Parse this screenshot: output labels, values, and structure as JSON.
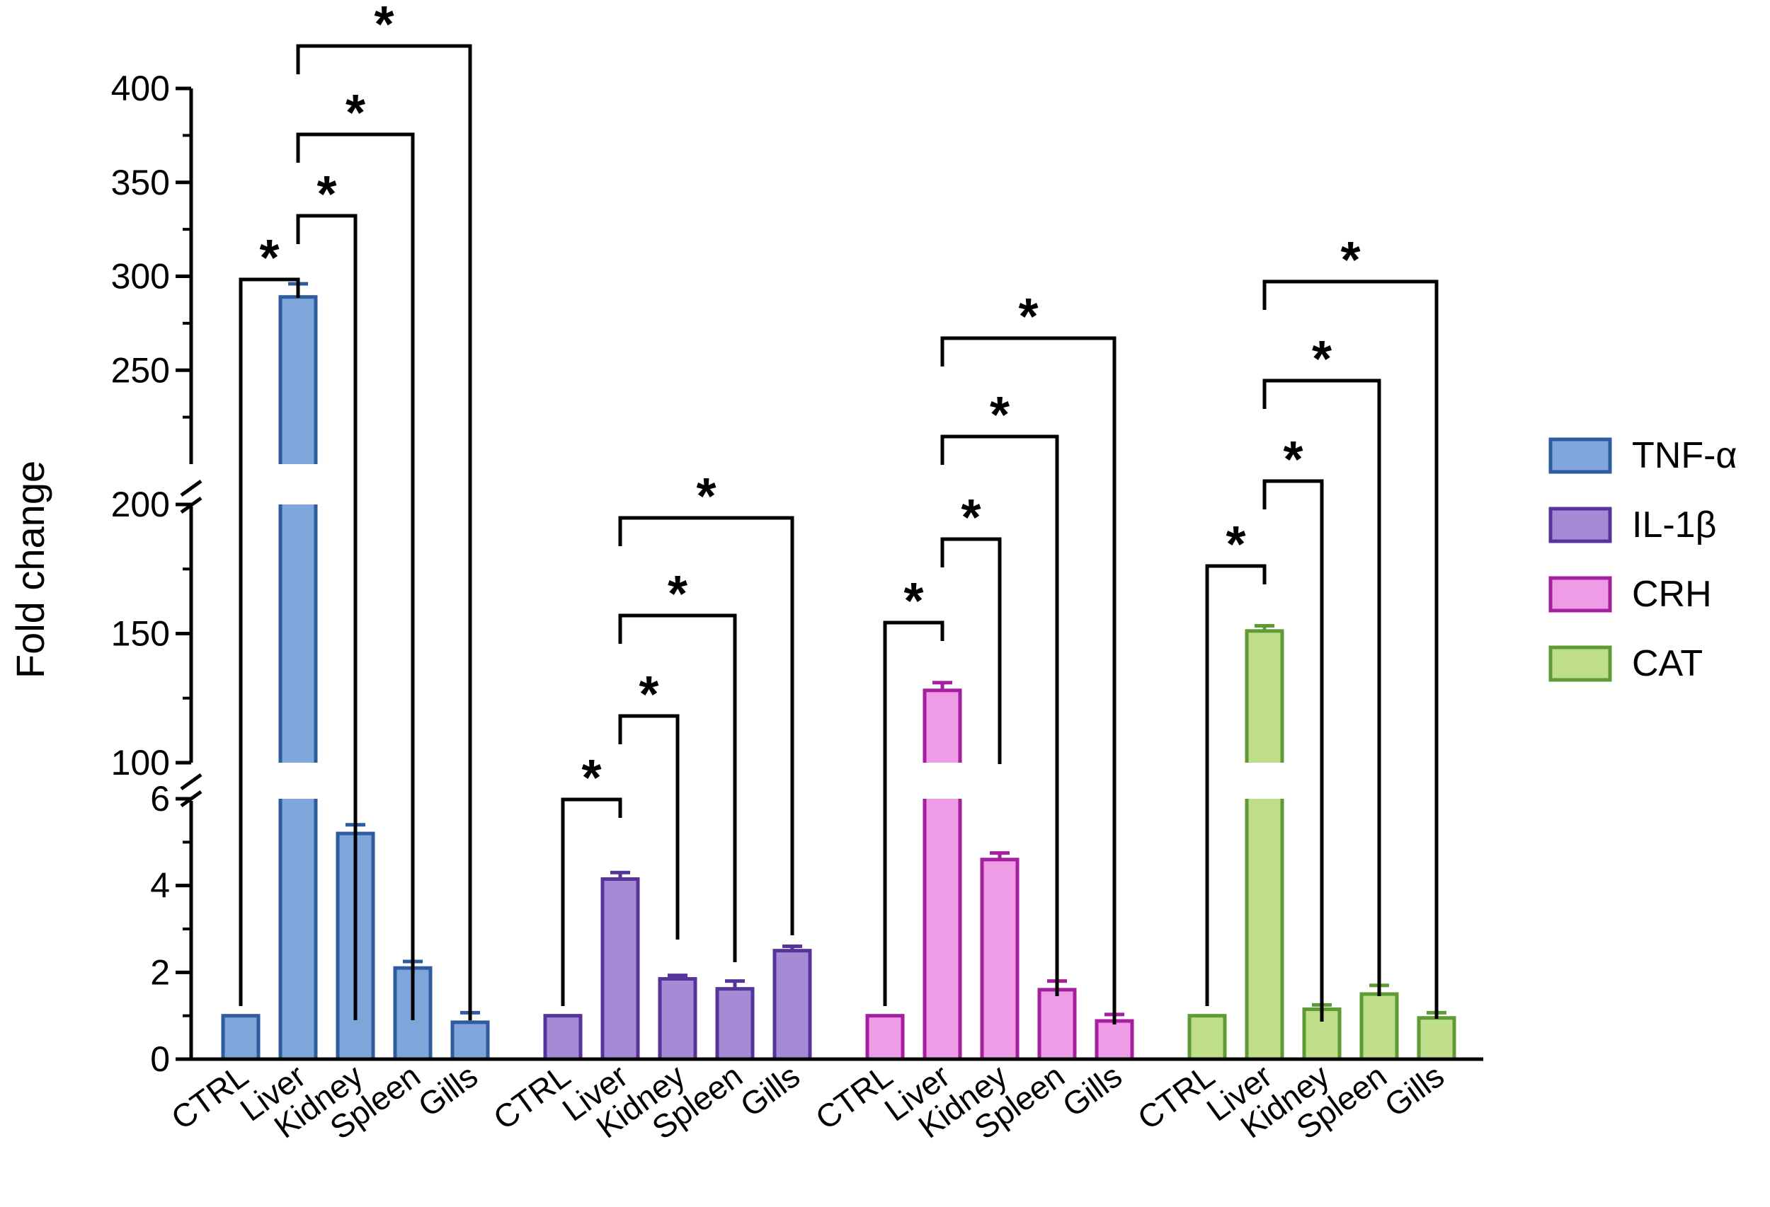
{
  "chart_data": {
    "type": "bar",
    "ylabel": "Fold change",
    "xlabel": "",
    "y_axis_segments": [
      {
        "range": [
          0,
          6
        ],
        "ticks": [
          "0",
          "2",
          "4",
          "6"
        ]
      },
      {
        "range": [
          100,
          200
        ],
        "ticks": [
          "100",
          "150",
          "200"
        ]
      },
      {
        "range": [
          200,
          400
        ],
        "ticks": [
          "250",
          "300",
          "350",
          "400"
        ]
      }
    ],
    "categories": [
      "CTRL",
      "Liver",
      "Kidney",
      "Spleen",
      "Gills"
    ],
    "significance_marker": "*",
    "series": [
      {
        "name": "TNF-α",
        "color": "#7EA6DB",
        "edge": "#2E5C9E",
        "values": [
          1,
          289,
          5.2,
          2.1,
          0.85
        ],
        "errors": [
          0,
          7,
          0.2,
          0.15,
          0.22
        ]
      },
      {
        "name": "IL-1β",
        "color": "#A58BD6",
        "edge": "#56349A",
        "values": [
          1,
          4.15,
          1.85,
          1.62,
          2.5
        ],
        "errors": [
          0,
          0.15,
          0.08,
          0.18,
          0.1
        ]
      },
      {
        "name": "CRH",
        "color": "#EE9CE6",
        "edge": "#A61FA0",
        "values": [
          1,
          128,
          4.6,
          1.6,
          0.88
        ],
        "errors": [
          0,
          3,
          0.15,
          0.2,
          0.15
        ]
      },
      {
        "name": "CAT",
        "color": "#BEDE8A",
        "edge": "#5E9B32",
        "values": [
          1,
          151,
          1.15,
          1.5,
          0.95
        ],
        "errors": [
          0,
          2,
          0.1,
          0.2,
          0.12
        ]
      }
    ],
    "legend": {
      "position": "right",
      "entries": [
        "TNF-α",
        "IL-1β",
        "CRH",
        "CAT"
      ]
    },
    "comparisons": [
      {
        "series": "TNF-α",
        "from": "CTRL",
        "to": "Liver",
        "label": "*"
      },
      {
        "series": "TNF-α",
        "from": "Liver",
        "to": "Kidney",
        "label": "*"
      },
      {
        "series": "TNF-α",
        "from": "Liver",
        "to": "Spleen",
        "label": "*"
      },
      {
        "series": "TNF-α",
        "from": "Liver",
        "to": "Gills",
        "label": "*"
      },
      {
        "series": "IL-1β",
        "from": "CTRL",
        "to": "Liver",
        "label": "*"
      },
      {
        "series": "IL-1β",
        "from": "Liver",
        "to": "Kidney",
        "label": "*"
      },
      {
        "series": "IL-1β",
        "from": "Liver",
        "to": "Spleen",
        "label": "*"
      },
      {
        "series": "IL-1β",
        "from": "Liver",
        "to": "Gills",
        "label": "*"
      },
      {
        "series": "CRH",
        "from": "CTRL",
        "to": "Liver",
        "label": "*"
      },
      {
        "series": "CRH",
        "from": "Liver",
        "to": "Kidney",
        "label": "*"
      },
      {
        "series": "CRH",
        "from": "Liver",
        "to": "Spleen",
        "label": "*"
      },
      {
        "series": "CRH",
        "from": "Liver",
        "to": "Gills",
        "label": "*"
      },
      {
        "series": "CAT",
        "from": "CTRL",
        "to": "Liver",
        "label": "*"
      },
      {
        "series": "CAT",
        "from": "Liver",
        "to": "Kidney",
        "label": "*"
      },
      {
        "series": "CAT",
        "from": "Liver",
        "to": "Spleen",
        "label": "*"
      },
      {
        "series": "CAT",
        "from": "Liver",
        "to": "Gills",
        "label": "*"
      }
    ]
  }
}
